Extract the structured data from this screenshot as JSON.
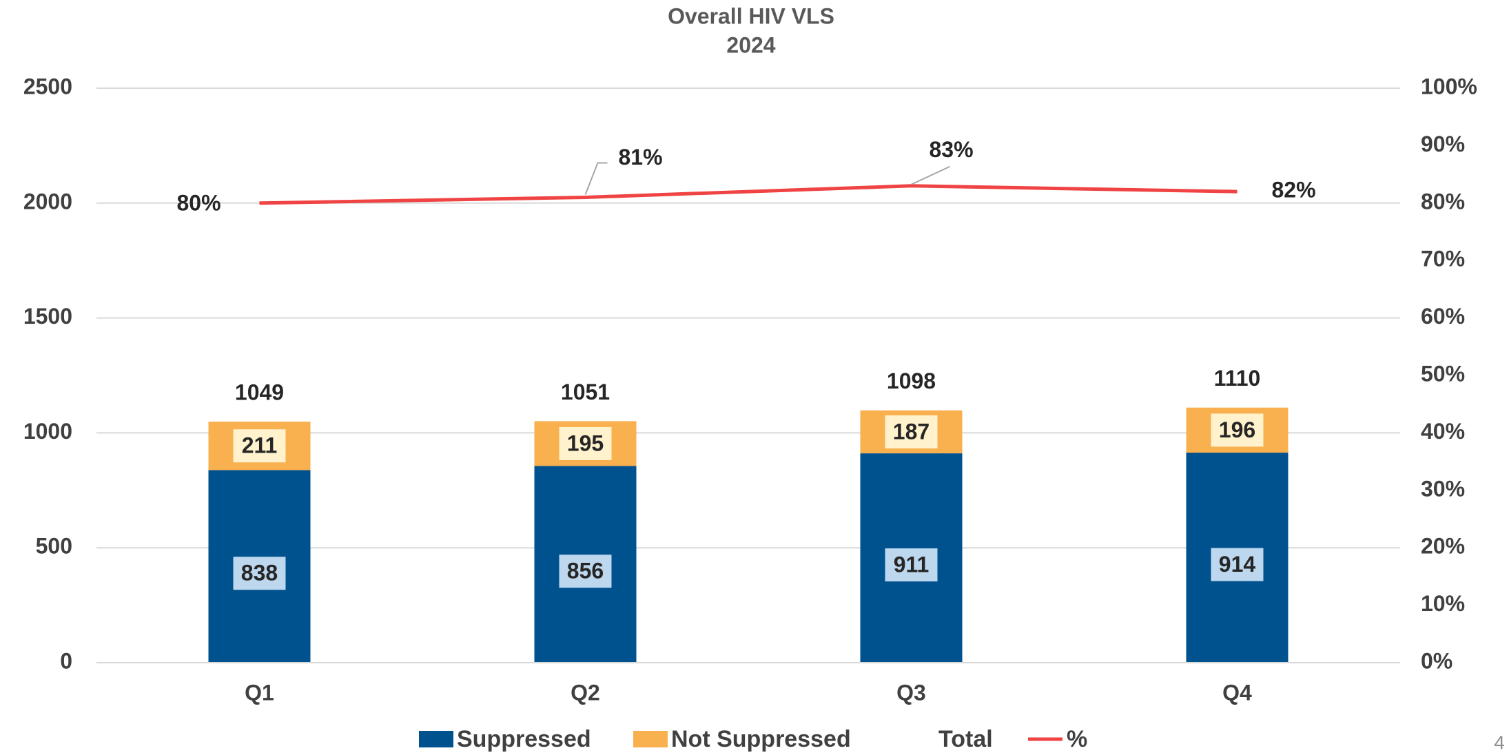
{
  "chart_data": {
    "type": "bar",
    "stacked": true,
    "title": "Overall HIV VLS",
    "subtitle": "2024",
    "categories": [
      "Q1",
      "Q2",
      "Q3",
      "Q4"
    ],
    "series": [
      {
        "name": "Suppressed",
        "color": "#00528f",
        "values": [
          838,
          856,
          911,
          914
        ]
      },
      {
        "name": "Not Suppressed",
        "color": "#f9b04f",
        "values": [
          211,
          195,
          187,
          196
        ]
      },
      {
        "name": "Total",
        "type": "label",
        "values": [
          1049,
          1051,
          1098,
          1110
        ]
      },
      {
        "name": "%",
        "type": "line",
        "axis": "y2",
        "color": "#f04444",
        "values": [
          80,
          81,
          83,
          82
        ],
        "value_labels": [
          "80%",
          "81%",
          "83%",
          "82%"
        ]
      }
    ],
    "ylim": [
      0,
      2500
    ],
    "yticks": [
      0,
      500,
      1000,
      1500,
      2000,
      2500
    ],
    "y2lim": [
      0,
      100
    ],
    "y2ticks": [
      {
        "value": 0,
        "label": "0%"
      },
      {
        "value": 10,
        "label": "10%"
      },
      {
        "value": 20,
        "label": "20%"
      },
      {
        "value": 30,
        "label": "30%"
      },
      {
        "value": 40,
        "label": "40%"
      },
      {
        "value": 50,
        "label": "50%"
      },
      {
        "value": 60,
        "label": "60%"
      },
      {
        "value": 70,
        "label": "70%"
      },
      {
        "value": 80,
        "label": "80%"
      },
      {
        "value": 90,
        "label": "90%"
      },
      {
        "value": 100,
        "label": "100%"
      }
    ],
    "grid": true,
    "legend": "bottom"
  },
  "page_number": "4"
}
